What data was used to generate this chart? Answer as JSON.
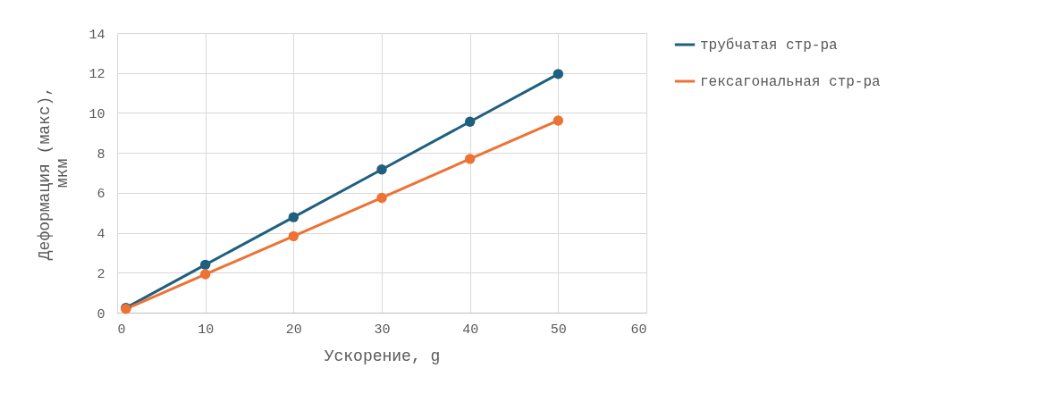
{
  "chart_data": {
    "type": "line",
    "xlabel": "Ускорение, g",
    "ylabel": "Деформация (макс), мкм",
    "x": [
      1,
      10,
      20,
      30,
      40,
      50
    ],
    "series": [
      {
        "name": "трубчатая стр-ра",
        "color": "#1f5f7f",
        "values": [
          0.24,
          2.4,
          4.78,
          7.17,
          9.56,
          11.95
        ]
      },
      {
        "name": "гексагональная стр-ра",
        "color": "#ed7233",
        "values": [
          0.19,
          1.92,
          3.83,
          5.75,
          7.7,
          9.62
        ]
      }
    ],
    "xlim": [
      0,
      60
    ],
    "xticks": [
      0,
      10,
      20,
      30,
      40,
      50,
      60
    ],
    "ylim": [
      0,
      14
    ],
    "yticks": [
      0,
      2,
      4,
      6,
      8,
      10,
      12,
      14
    ],
    "grid": true,
    "legend": "right",
    "marker": "circle",
    "line_style": "solid"
  }
}
